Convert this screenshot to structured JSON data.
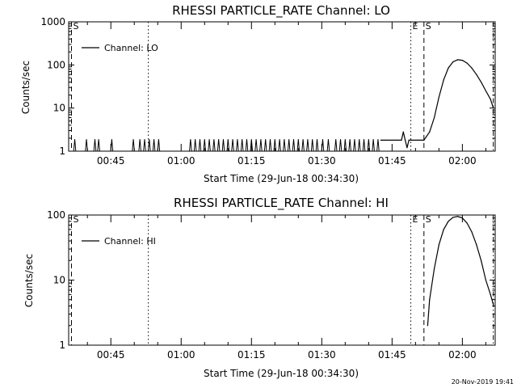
{
  "footer": {
    "date": "20-Nov-2019 19:41"
  },
  "chart_data": [
    {
      "type": "line",
      "title": "RHESSI PARTICLE_RATE Channel: LO",
      "xlabel": "Start Time (29-Jun-18 00:34:30)",
      "ylabel": "Counts/sec",
      "y_scale": "log",
      "ylim": [
        1,
        1000
      ],
      "xlim_minutes": [
        36,
        127
      ],
      "x_ticks": [
        {
          "label": "00:45",
          "minute": 45
        },
        {
          "label": "01:00",
          "minute": 60
        },
        {
          "label": "01:15",
          "minute": 75
        },
        {
          "label": "01:30",
          "minute": 90
        },
        {
          "label": "01:45",
          "minute": 105
        },
        {
          "label": "02:00",
          "minute": 120
        }
      ],
      "y_ticks": [
        {
          "label": "1",
          "value": 1
        },
        {
          "label": "10",
          "value": 10
        },
        {
          "label": "100",
          "value": 100
        },
        {
          "label": "1000",
          "value": 1000
        }
      ],
      "grid": false,
      "legend": {
        "position": "top-left",
        "entries": [
          "Channel: LO"
        ]
      },
      "series": [
        {
          "name": "Channel: LO",
          "spikes_minutes": [
            37.3,
            39.8,
            41.6,
            42.4,
            45.2,
            49.8,
            51.2,
            52.2,
            53.2,
            54.2,
            55.2,
            62,
            63,
            64,
            65,
            66,
            67,
            68,
            69,
            70,
            71,
            72,
            73,
            74,
            75,
            76,
            77,
            78,
            79,
            80,
            81,
            82,
            83,
            84,
            85,
            86,
            87,
            88,
            89,
            90.2,
            91.4,
            93,
            94,
            95,
            96,
            97,
            98,
            99,
            100,
            101,
            102
          ],
          "spike_value": 1.9,
          "x": [
            102.6,
            107,
            107.4,
            107.8,
            108.2,
            108.6,
            109,
            111.8,
            113,
            114,
            115,
            116,
            117,
            118,
            119,
            120,
            121,
            122,
            123,
            124,
            125,
            126,
            126.6
          ],
          "y": [
            1.8,
            1.8,
            2.8,
            1.8,
            1.2,
            1.8,
            1.8,
            1.8,
            2.8,
            6,
            18,
            45,
            85,
            118,
            132,
            128,
            110,
            85,
            60,
            40,
            25,
            16,
            10
          ]
        }
      ],
      "vlines": [
        {
          "minute": 36.6,
          "style": "dashed",
          "label": "S"
        },
        {
          "minute": 53,
          "style": "dotted",
          "label": ""
        },
        {
          "minute": 109,
          "style": "dotted",
          "label": "E"
        },
        {
          "minute": 111.8,
          "style": "dashed",
          "label": "S"
        },
        {
          "minute": 126.6,
          "style": "dashdot",
          "label": ""
        }
      ]
    },
    {
      "type": "line",
      "title": "RHESSI PARTICLE_RATE Channel: HI",
      "xlabel": "Start Time (29-Jun-18 00:34:30)",
      "ylabel": "Counts/sec",
      "y_scale": "log",
      "ylim": [
        1,
        100
      ],
      "xlim_minutes": [
        36,
        127
      ],
      "x_ticks": [
        {
          "label": "00:45",
          "minute": 45
        },
        {
          "label": "01:00",
          "minute": 60
        },
        {
          "label": "01:15",
          "minute": 75
        },
        {
          "label": "01:30",
          "minute": 90
        },
        {
          "label": "01:45",
          "minute": 105
        },
        {
          "label": "02:00",
          "minute": 120
        }
      ],
      "y_ticks": [
        {
          "label": "1",
          "value": 1
        },
        {
          "label": "10",
          "value": 10
        },
        {
          "label": "100",
          "value": 100
        }
      ],
      "grid": false,
      "legend": {
        "position": "top-left",
        "entries": [
          "Channel: HI"
        ]
      },
      "series": [
        {
          "name": "Channel: HI",
          "spikes_minutes": [],
          "spike_value": 1,
          "x": [
            112.6,
            113,
            114,
            115,
            116,
            117,
            118,
            119,
            120,
            121,
            122,
            123,
            124,
            125,
            126,
            126.6
          ],
          "y": [
            2,
            5,
            15,
            35,
            60,
            80,
            92,
            95,
            90,
            75,
            55,
            35,
            20,
            10,
            6,
            4.2
          ]
        }
      ],
      "vlines": [
        {
          "minute": 36.6,
          "style": "dashed",
          "label": "S"
        },
        {
          "minute": 53,
          "style": "dotted",
          "label": ""
        },
        {
          "minute": 109,
          "style": "dotted",
          "label": "E"
        },
        {
          "minute": 111.8,
          "style": "dashed",
          "label": "S"
        },
        {
          "minute": 126.6,
          "style": "dashdot",
          "label": ""
        }
      ]
    }
  ]
}
